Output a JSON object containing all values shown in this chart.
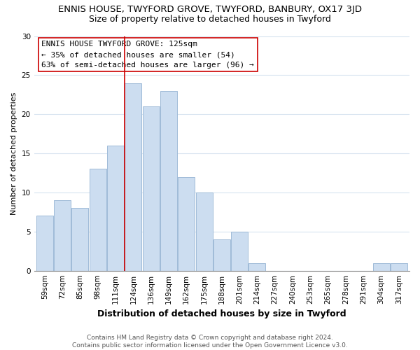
{
  "title": "ENNIS HOUSE, TWYFORD GROVE, TWYFORD, BANBURY, OX17 3JD",
  "subtitle": "Size of property relative to detached houses in Twyford",
  "xlabel": "Distribution of detached houses by size in Twyford",
  "ylabel": "Number of detached properties",
  "bar_labels": [
    "59sqm",
    "72sqm",
    "85sqm",
    "98sqm",
    "111sqm",
    "124sqm",
    "136sqm",
    "149sqm",
    "162sqm",
    "175sqm",
    "188sqm",
    "201sqm",
    "214sqm",
    "227sqm",
    "240sqm",
    "253sqm",
    "265sqm",
    "278sqm",
    "291sqm",
    "304sqm",
    "317sqm"
  ],
  "bar_values": [
    7,
    9,
    8,
    13,
    16,
    24,
    21,
    23,
    12,
    10,
    4,
    5,
    1,
    0,
    0,
    0,
    0,
    0,
    0,
    1,
    1
  ],
  "bar_color": "#ccddf0",
  "bar_edge_color": "#9fbbd8",
  "grid_color": "#d8e4f0",
  "annotation_text": "ENNIS HOUSE TWYFORD GROVE: 125sqm\n← 35% of detached houses are smaller (54)\n63% of semi-detached houses are larger (96) →",
  "vline_color": "#cc0000",
  "ylim": [
    0,
    30
  ],
  "footer": "Contains HM Land Registry data © Crown copyright and database right 2024.\nContains public sector information licensed under the Open Government Licence v3.0.",
  "title_fontsize": 9.5,
  "subtitle_fontsize": 9,
  "xlabel_fontsize": 9,
  "ylabel_fontsize": 8,
  "tick_fontsize": 7.5,
  "annotation_fontsize": 8,
  "footer_fontsize": 6.5
}
